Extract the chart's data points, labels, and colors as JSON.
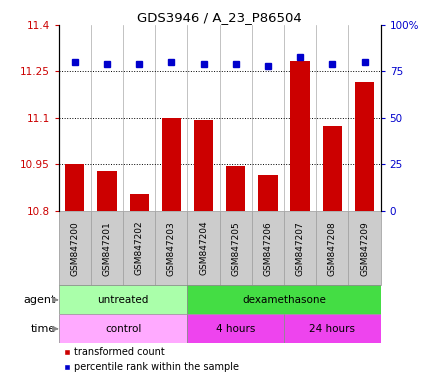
{
  "title": "GDS3946 / A_23_P86504",
  "samples": [
    "GSM847200",
    "GSM847201",
    "GSM847202",
    "GSM847203",
    "GSM847204",
    "GSM847205",
    "GSM847206",
    "GSM847207",
    "GSM847208",
    "GSM847209"
  ],
  "transformed_count": [
    10.95,
    10.93,
    10.855,
    11.1,
    11.095,
    10.945,
    10.915,
    11.285,
    11.075,
    11.215
  ],
  "percentile_rank": [
    80,
    79,
    79,
    80,
    79,
    79,
    78,
    83,
    79,
    80
  ],
  "ylim_left": [
    10.8,
    11.4
  ],
  "ylim_right": [
    0,
    100
  ],
  "yticks_left": [
    10.8,
    10.95,
    11.1,
    11.25,
    11.4
  ],
  "ytick_labels_left": [
    "10.8",
    "10.95",
    "11.1",
    "11.25",
    "11.4"
  ],
  "yticks_right": [
    0,
    25,
    50,
    75,
    100
  ],
  "ytick_labels_right": [
    "0",
    "25",
    "50",
    "75",
    "100%"
  ],
  "hlines": [
    10.95,
    11.1,
    11.25
  ],
  "bar_color": "#cc0000",
  "dot_color": "#0000cc",
  "agent_groups": [
    {
      "label": "untreated",
      "start": 0,
      "end": 4,
      "color": "#aaffaa"
    },
    {
      "label": "dexamethasone",
      "start": 4,
      "end": 10,
      "color": "#44dd44"
    }
  ],
  "time_groups": [
    {
      "label": "control",
      "start": 0,
      "end": 4,
      "color": "#ffaaff"
    },
    {
      "label": "4 hours",
      "start": 4,
      "end": 7,
      "color": "#ee44ee"
    },
    {
      "label": "24 hours",
      "start": 7,
      "end": 10,
      "color": "#ee44ee"
    }
  ],
  "legend_tc_label": "transformed count",
  "legend_pr_label": "percentile rank within the sample",
  "agent_label": "agent",
  "time_label": "time",
  "bar_bottom": 10.8,
  "sample_box_color": "#cccccc",
  "sample_box_edge": "#999999"
}
